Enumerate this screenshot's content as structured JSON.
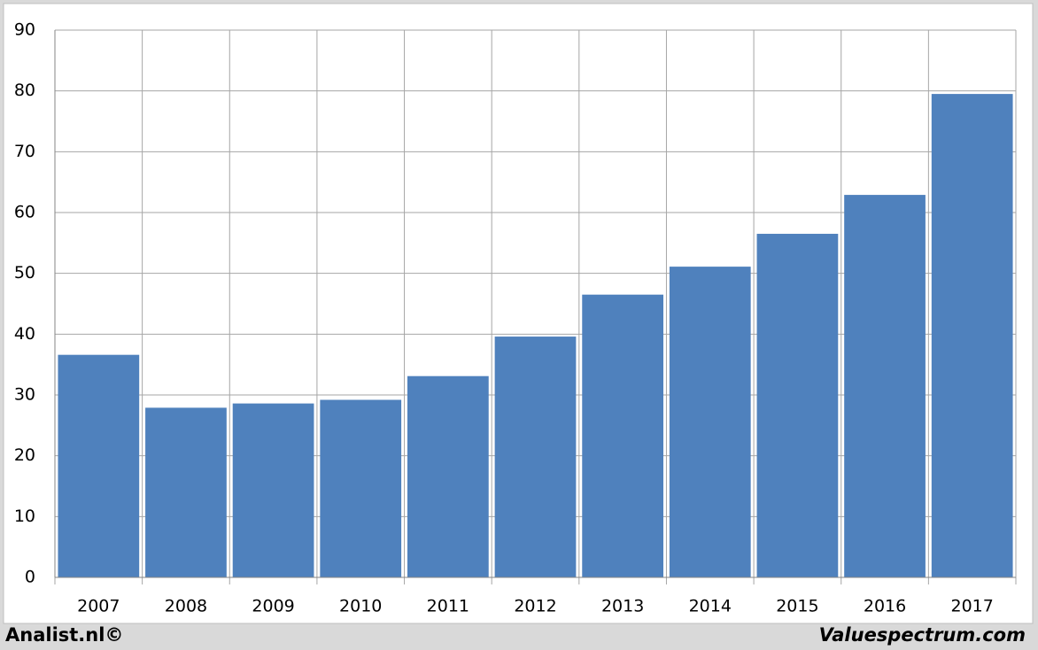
{
  "chart_data": {
    "type": "bar",
    "categories": [
      "2007",
      "2008",
      "2009",
      "2010",
      "2011",
      "2012",
      "2013",
      "2014",
      "2015",
      "2016",
      "2017"
    ],
    "values": [
      36.6,
      27.9,
      28.6,
      29.2,
      33.1,
      39.6,
      46.5,
      51.1,
      56.5,
      62.9,
      79.5
    ],
    "color": "#4f81bd",
    "ylim": [
      0,
      90
    ],
    "yticks": [
      0,
      10,
      20,
      30,
      40,
      50,
      60,
      70,
      80,
      90
    ],
    "grid": true,
    "annotations": [
      "Analist.nl©",
      "Valuespectrum.com"
    ]
  }
}
